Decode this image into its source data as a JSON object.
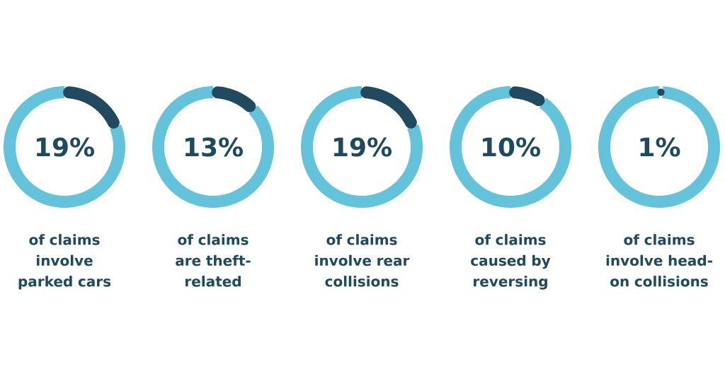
{
  "chart_data": [
    {
      "type": "donut",
      "categories": [
        null,
        null
      ],
      "values": [
        19,
        81
      ],
      "colors": [
        "#1f4a60",
        "#62c3db"
      ],
      "annotations": [
        "19%",
        "of claims involve parked cars"
      ]
    },
    {
      "type": "donut",
      "categories": [
        null,
        null
      ],
      "values": [
        13,
        87
      ],
      "colors": [
        "#1f4a60",
        "#62c3db"
      ],
      "annotations": [
        "13%",
        "of claims are theft-related"
      ]
    },
    {
      "type": "donut",
      "categories": [
        null,
        null
      ],
      "values": [
        19,
        81
      ],
      "colors": [
        "#1f4a60",
        "#62c3db"
      ],
      "annotations": [
        "19%",
        "of claims involve rear collisions"
      ]
    },
    {
      "type": "donut",
      "categories": [
        null,
        null
      ],
      "values": [
        10,
        90
      ],
      "colors": [
        "#1f4a60",
        "#62c3db"
      ],
      "annotations": [
        "10%",
        "of claims caused by reversing"
      ]
    },
    {
      "type": "donut",
      "categories": [
        null,
        null
      ],
      "values": [
        1,
        99
      ],
      "colors": [
        "#1f4a60",
        "#62c3db"
      ],
      "annotations": [
        "1%",
        "of claims involve head-on collisions"
      ]
    }
  ]
}
